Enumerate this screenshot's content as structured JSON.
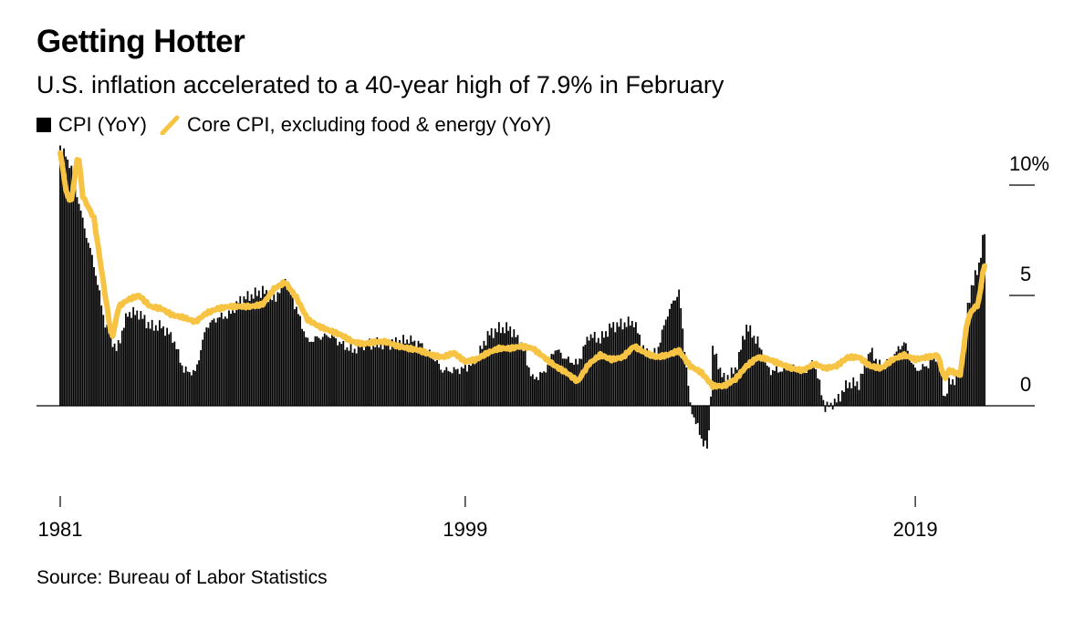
{
  "title": "Getting Hotter",
  "subtitle": "U.S. inflation accelerated to a 40-year high of 7.9% in February",
  "legend": {
    "cpi_label": "CPI (YoY)",
    "core_label": "Core CPI, excluding food & energy (YoY)"
  },
  "source": "Source: Bureau of Labor Statistics",
  "colors": {
    "cpi": "#000000",
    "core": "#f6c343",
    "axis": "#000000"
  },
  "chart_data": {
    "type": "bar+line",
    "x_range": [
      1981,
      2022.2
    ],
    "ylim": [
      -3.8,
      11
    ],
    "y_ticks": [
      {
        "value": 10,
        "label": "10%"
      },
      {
        "value": 5,
        "label": "5"
      },
      {
        "value": 0,
        "label": "0"
      }
    ],
    "x_ticks": [
      {
        "value": 1981,
        "label": "1981"
      },
      {
        "value": 1999,
        "label": "1999"
      },
      {
        "value": 2019,
        "label": "2019"
      }
    ],
    "series": [
      {
        "name": "CPI (YoY)",
        "kind": "bar",
        "points": [
          [
            1981.0,
            11.8
          ],
          [
            1981.5,
            10.8
          ],
          [
            1982.0,
            8.4
          ],
          [
            1982.5,
            6.4
          ],
          [
            1983.0,
            3.7
          ],
          [
            1983.5,
            2.5
          ],
          [
            1984.0,
            4.2
          ],
          [
            1984.5,
            4.2
          ],
          [
            1985.0,
            3.6
          ],
          [
            1985.5,
            3.6
          ],
          [
            1986.0,
            3.1
          ],
          [
            1986.5,
            1.6
          ],
          [
            1987.0,
            1.5
          ],
          [
            1987.5,
            3.6
          ],
          [
            1988.0,
            4.0
          ],
          [
            1988.5,
            4.1
          ],
          [
            1989.0,
            4.8
          ],
          [
            1989.5,
            5.0
          ],
          [
            1990.0,
            5.2
          ],
          [
            1990.5,
            4.8
          ],
          [
            1991.0,
            5.7
          ],
          [
            1991.5,
            4.4
          ],
          [
            1992.0,
            2.9
          ],
          [
            1992.5,
            3.1
          ],
          [
            1993.0,
            3.2
          ],
          [
            1993.5,
            2.8
          ],
          [
            1994.0,
            2.5
          ],
          [
            1994.5,
            2.8
          ],
          [
            1995.0,
            2.8
          ],
          [
            1995.5,
            2.8
          ],
          [
            1996.0,
            2.9
          ],
          [
            1996.5,
            3.0
          ],
          [
            1997.0,
            2.8
          ],
          [
            1997.5,
            2.3
          ],
          [
            1998.0,
            1.6
          ],
          [
            1998.5,
            1.6
          ],
          [
            1999.0,
            1.7
          ],
          [
            1999.5,
            2.1
          ],
          [
            2000.0,
            3.2
          ],
          [
            2000.5,
            3.5
          ],
          [
            2001.0,
            3.5
          ],
          [
            2001.5,
            2.8
          ],
          [
            2002.0,
            1.2
          ],
          [
            2002.5,
            1.5
          ],
          [
            2003.0,
            2.6
          ],
          [
            2003.5,
            2.1
          ],
          [
            2004.0,
            1.9
          ],
          [
            2004.5,
            3.2
          ],
          [
            2005.0,
            3.0
          ],
          [
            2005.5,
            3.6
          ],
          [
            2006.0,
            3.7
          ],
          [
            2006.5,
            3.8
          ],
          [
            2007.0,
            2.4
          ],
          [
            2007.5,
            2.4
          ],
          [
            2008.0,
            4.2
          ],
          [
            2008.5,
            5.2
          ],
          [
            2009.0,
            0.0
          ],
          [
            2009.5,
            -1.5
          ],
          [
            2009.8,
            -2.0
          ],
          [
            2010.0,
            2.6
          ],
          [
            2010.5,
            1.2
          ],
          [
            2011.0,
            1.6
          ],
          [
            2011.5,
            3.6
          ],
          [
            2012.0,
            2.9
          ],
          [
            2012.5,
            1.6
          ],
          [
            2013.0,
            1.6
          ],
          [
            2013.5,
            1.8
          ],
          [
            2014.0,
            1.5
          ],
          [
            2014.5,
            2.0
          ],
          [
            2015.0,
            -0.1
          ],
          [
            2015.5,
            0.2
          ],
          [
            2016.0,
            1.0
          ],
          [
            2016.5,
            1.0
          ],
          [
            2017.0,
            2.5
          ],
          [
            2017.5,
            1.7
          ],
          [
            2018.0,
            2.2
          ],
          [
            2018.5,
            2.9
          ],
          [
            2019.0,
            1.6
          ],
          [
            2019.5,
            1.8
          ],
          [
            2020.0,
            2.3
          ],
          [
            2020.3,
            0.3
          ],
          [
            2020.5,
            1.0
          ],
          [
            2021.0,
            1.4
          ],
          [
            2021.3,
            4.2
          ],
          [
            2021.5,
            5.4
          ],
          [
            2021.8,
            6.2
          ],
          [
            2022.0,
            7.5
          ],
          [
            2022.1,
            7.9
          ]
        ]
      },
      {
        "name": "Core CPI, excluding food & energy (YoY)",
        "kind": "line",
        "points": [
          [
            1981.0,
            11.5
          ],
          [
            1981.3,
            9.5
          ],
          [
            1981.5,
            9.3
          ],
          [
            1981.8,
            11.5
          ],
          [
            1982.0,
            9.5
          ],
          [
            1982.5,
            8.5
          ],
          [
            1983.0,
            5.0
          ],
          [
            1983.3,
            3.0
          ],
          [
            1983.6,
            4.5
          ],
          [
            1984.0,
            4.8
          ],
          [
            1984.5,
            5.0
          ],
          [
            1985.0,
            4.5
          ],
          [
            1985.5,
            4.4
          ],
          [
            1986.0,
            4.1
          ],
          [
            1986.5,
            4.0
          ],
          [
            1987.0,
            3.8
          ],
          [
            1987.5,
            4.2
          ],
          [
            1988.0,
            4.4
          ],
          [
            1988.5,
            4.5
          ],
          [
            1989.0,
            4.5
          ],
          [
            1989.5,
            4.5
          ],
          [
            1990.0,
            4.6
          ],
          [
            1990.5,
            5.3
          ],
          [
            1991.0,
            5.6
          ],
          [
            1991.5,
            4.9
          ],
          [
            1992.0,
            3.9
          ],
          [
            1992.5,
            3.6
          ],
          [
            1993.0,
            3.4
          ],
          [
            1993.5,
            3.2
          ],
          [
            1994.0,
            2.9
          ],
          [
            1994.5,
            2.8
          ],
          [
            1995.0,
            2.9
          ],
          [
            1995.5,
            2.9
          ],
          [
            1996.0,
            2.7
          ],
          [
            1996.5,
            2.6
          ],
          [
            1997.0,
            2.5
          ],
          [
            1997.5,
            2.3
          ],
          [
            1998.0,
            2.2
          ],
          [
            1998.5,
            2.4
          ],
          [
            1999.0,
            2.0
          ],
          [
            1999.5,
            2.1
          ],
          [
            2000.0,
            2.4
          ],
          [
            2000.5,
            2.6
          ],
          [
            2001.0,
            2.6
          ],
          [
            2001.5,
            2.7
          ],
          [
            2002.0,
            2.6
          ],
          [
            2002.5,
            2.2
          ],
          [
            2003.0,
            1.8
          ],
          [
            2003.5,
            1.5
          ],
          [
            2004.0,
            1.1
          ],
          [
            2004.5,
            1.9
          ],
          [
            2005.0,
            2.3
          ],
          [
            2005.5,
            2.1
          ],
          [
            2006.0,
            2.2
          ],
          [
            2006.5,
            2.7
          ],
          [
            2007.0,
            2.4
          ],
          [
            2007.5,
            2.2
          ],
          [
            2008.0,
            2.3
          ],
          [
            2008.5,
            2.5
          ],
          [
            2009.0,
            1.8
          ],
          [
            2009.5,
            1.5
          ],
          [
            2010.0,
            0.9
          ],
          [
            2010.5,
            0.9
          ],
          [
            2011.0,
            1.2
          ],
          [
            2011.5,
            1.8
          ],
          [
            2012.0,
            2.2
          ],
          [
            2012.5,
            2.1
          ],
          [
            2013.0,
            1.9
          ],
          [
            2013.5,
            1.7
          ],
          [
            2014.0,
            1.6
          ],
          [
            2014.5,
            1.9
          ],
          [
            2015.0,
            1.7
          ],
          [
            2015.5,
            1.8
          ],
          [
            2016.0,
            2.2
          ],
          [
            2016.5,
            2.2
          ],
          [
            2017.0,
            1.8
          ],
          [
            2017.5,
            1.7
          ],
          [
            2018.0,
            2.1
          ],
          [
            2018.5,
            2.3
          ],
          [
            2019.0,
            2.1
          ],
          [
            2019.5,
            2.2
          ],
          [
            2020.0,
            2.3
          ],
          [
            2020.3,
            1.2
          ],
          [
            2020.5,
            1.6
          ],
          [
            2021.0,
            1.4
          ],
          [
            2021.3,
            3.8
          ],
          [
            2021.5,
            4.3
          ],
          [
            2021.8,
            4.6
          ],
          [
            2022.0,
            6.0
          ],
          [
            2022.1,
            6.4
          ]
        ]
      }
    ]
  }
}
